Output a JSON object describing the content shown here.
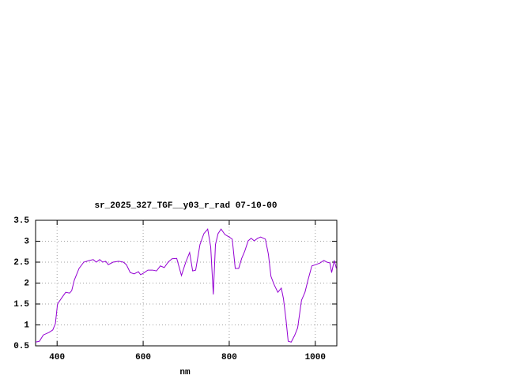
{
  "chart_data": {
    "type": "line",
    "title": "sr_2025_327_TGF__y03_r_rad 07-10-00",
    "x_label": "nm",
    "x": [
      350,
      359,
      368,
      381,
      390,
      396,
      401,
      411,
      420,
      429,
      434,
      440,
      451,
      462,
      475,
      484,
      491,
      499,
      506,
      513,
      519,
      530,
      543,
      554,
      561,
      570,
      579,
      589,
      594,
      601,
      611,
      622,
      631,
      640,
      649,
      658,
      667,
      678,
      689,
      699,
      708,
      715,
      722,
      732,
      741,
      750,
      757,
      763,
      768,
      774,
      781,
      790,
      800,
      807,
      814,
      822,
      829,
      836,
      844,
      851,
      858,
      866,
      873,
      884,
      891,
      897,
      904,
      913,
      921,
      926,
      932,
      937,
      944,
      952,
      959,
      968,
      976,
      983,
      992,
      1001,
      1011,
      1020,
      1027,
      1034,
      1038,
      1044,
      1049
    ],
    "values": [
      0.59,
      0.61,
      0.76,
      0.82,
      0.88,
      1.03,
      1.5,
      1.65,
      1.78,
      1.76,
      1.82,
      2.07,
      2.35,
      2.5,
      2.54,
      2.56,
      2.5,
      2.56,
      2.5,
      2.52,
      2.44,
      2.5,
      2.52,
      2.5,
      2.44,
      2.25,
      2.22,
      2.27,
      2.2,
      2.24,
      2.31,
      2.31,
      2.29,
      2.41,
      2.37,
      2.5,
      2.58,
      2.59,
      2.18,
      2.5,
      2.73,
      2.29,
      2.31,
      2.92,
      3.18,
      3.29,
      2.86,
      1.73,
      2.92,
      3.18,
      3.29,
      3.16,
      3.1,
      3.05,
      2.35,
      2.35,
      2.59,
      2.76,
      3.01,
      3.07,
      3.01,
      3.07,
      3.1,
      3.05,
      2.69,
      2.16,
      1.97,
      1.78,
      1.88,
      1.63,
      1.12,
      0.61,
      0.59,
      0.75,
      0.93,
      1.59,
      1.78,
      2.07,
      2.41,
      2.44,
      2.48,
      2.54,
      2.5,
      2.48,
      2.25,
      2.54,
      2.35
    ],
    "color": "#9400d3",
    "xlim": [
      350,
      1050
    ],
    "xticks": [
      400,
      600,
      800,
      1000
    ],
    "ylim": [
      0.5,
      3.5
    ],
    "yticks": [
      0.5,
      1,
      1.5,
      2,
      2.5,
      3,
      3.5
    ],
    "grid": true
  }
}
